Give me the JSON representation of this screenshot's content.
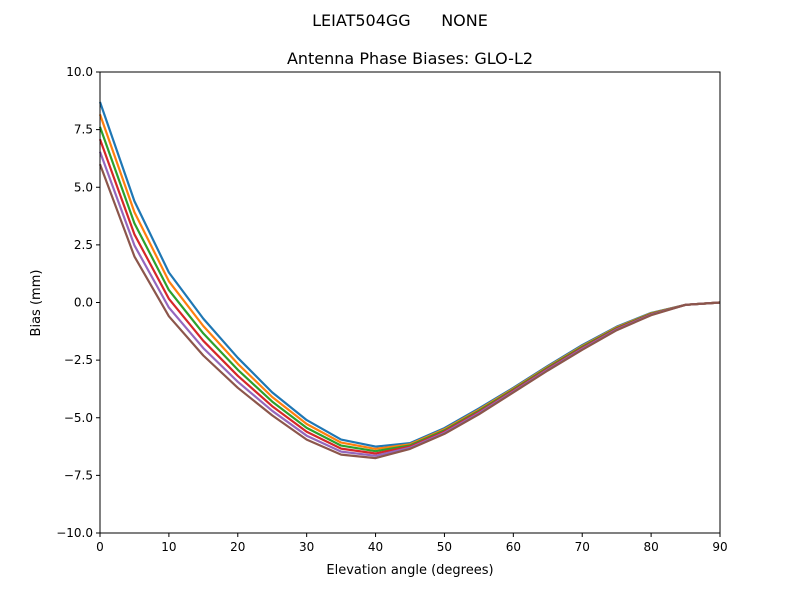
{
  "chart_data": {
    "type": "line",
    "suptitle": "LEIAT504GG      NONE",
    "title": "Antenna Phase Biases: GLO-L2",
    "xlabel": "Elevation angle (degrees)",
    "ylabel": "Bias (mm)",
    "xlim": [
      0,
      90
    ],
    "ylim": [
      -10,
      10
    ],
    "grid": false,
    "xticks": [
      0,
      10,
      20,
      30,
      40,
      50,
      60,
      70,
      80,
      90
    ],
    "yticks": [
      -10.0,
      -7.5,
      -5.0,
      -2.5,
      0.0,
      2.5,
      5.0,
      7.5,
      10.0
    ],
    "ytick_labels": [
      "−10.0",
      "−7.5",
      "−5.0",
      "−2.5",
      "0.0",
      "2.5",
      "5.0",
      "7.5",
      "10.0"
    ],
    "x": [
      0,
      5,
      10,
      15,
      20,
      25,
      30,
      35,
      40,
      45,
      50,
      55,
      60,
      65,
      70,
      75,
      80,
      85,
      90
    ],
    "colors": [
      "#1f77b4",
      "#ff7f0e",
      "#2ca02c",
      "#d62728",
      "#9467bd",
      "#8c564b",
      "#e377c2",
      "#7f7f7f",
      "#bcbd22",
      "#17becf"
    ],
    "series": [
      {
        "values": [
          8.7,
          4.4,
          1.3,
          -0.7,
          -2.4,
          -3.9,
          -5.1,
          -5.95,
          -6.25,
          -6.1,
          -5.45,
          -4.6,
          -3.7,
          -2.75,
          -1.85,
          -1.05,
          -0.45,
          -0.1,
          0.0
        ]
      },
      {
        "values": [
          8.16,
          3.92,
          0.92,
          -1.02,
          -2.66,
          -4.1,
          -5.27,
          -6.08,
          -6.35,
          -6.15,
          -5.5,
          -4.65,
          -3.74,
          -2.79,
          -1.89,
          -1.08,
          -0.47,
          -0.1,
          0.0
        ]
      },
      {
        "values": [
          7.62,
          3.44,
          0.54,
          -1.34,
          -2.92,
          -4.3,
          -5.44,
          -6.21,
          -6.45,
          -6.2,
          -5.55,
          -4.7,
          -3.78,
          -2.83,
          -1.93,
          -1.11,
          -0.49,
          -0.1,
          0.0
        ]
      },
      {
        "values": [
          7.08,
          2.96,
          0.16,
          -1.66,
          -3.18,
          -4.5,
          -5.61,
          -6.34,
          -6.55,
          -6.25,
          -5.6,
          -4.75,
          -3.82,
          -2.87,
          -1.97,
          -1.14,
          -0.51,
          -0.1,
          0.0
        ]
      },
      {
        "values": [
          6.54,
          2.48,
          -0.22,
          -1.98,
          -3.44,
          -4.7,
          -5.78,
          -6.47,
          -6.65,
          -6.3,
          -5.65,
          -4.8,
          -3.86,
          -2.91,
          -2.01,
          -1.17,
          -0.53,
          -0.1,
          0.0
        ]
      },
      {
        "values": [
          6.0,
          2.0,
          -0.6,
          -2.3,
          -3.7,
          -4.9,
          -5.95,
          -6.6,
          -6.75,
          -6.35,
          -5.7,
          -4.85,
          -3.9,
          -2.95,
          -2.05,
          -1.2,
          -0.55,
          -0.1,
          0.0
        ]
      }
    ]
  }
}
